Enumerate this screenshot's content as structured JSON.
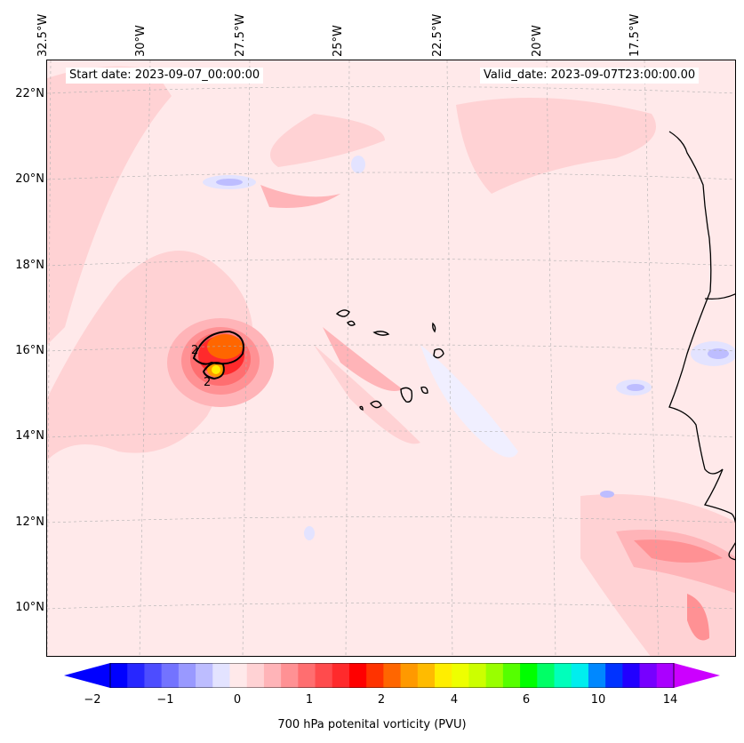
{
  "header": {
    "start_date": "Start date: 2023-09-07_00:00:00",
    "valid_date": "Valid_date: 2023-09-07T23:00:00.00"
  },
  "longitude_labels": [
    "32.5°W",
    "30°W",
    "27.5°W",
    "25°W",
    "22.5°W",
    "20°W",
    "17.5°W"
  ],
  "latitude_labels": [
    "22°N",
    "20°N",
    "18°N",
    "16°N",
    "14°N",
    "12°N",
    "10°N"
  ],
  "contour_labels": [
    "2",
    "2"
  ],
  "colorbar": {
    "title": "700 hPa potenital vorticity (PVU)",
    "tick_labels": [
      "−2",
      "−1",
      "0",
      "1",
      "2",
      "4",
      "6",
      "10",
      "14"
    ],
    "colors": [
      "#0000ff",
      "#2727ff",
      "#4d4dff",
      "#7373ff",
      "#9999ff",
      "#bdbdff",
      "#e3e3ff",
      "#ffe9ea",
      "#ffd2d4",
      "#ffb4b8",
      "#ff9194",
      "#ff6e70",
      "#ff4b4d",
      "#ff2a2c",
      "#ff0000",
      "#ff3300",
      "#ff6600",
      "#ff9900",
      "#ffbb00",
      "#ffee00",
      "#eeff00",
      "#ccff00",
      "#99ff00",
      "#55ff00",
      "#00ff00",
      "#00ff66",
      "#00ffbb",
      "#00eeee",
      "#0088ff",
      "#0033ff",
      "#2200ff",
      "#7700ff",
      "#aa00ff"
    ],
    "min_arrow_color": "#0000ff",
    "max_arrow_color": "#cc00ff"
  }
}
